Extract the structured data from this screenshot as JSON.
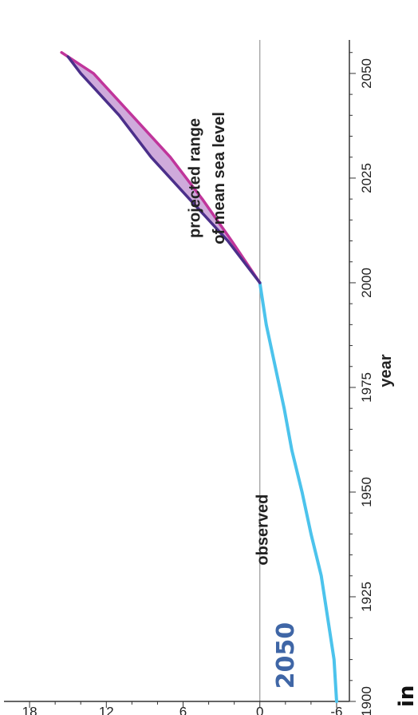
{
  "badge_text": "2050",
  "units_label": "in",
  "chart_data": {
    "type": "area",
    "xlabel": "year",
    "ylabel": "",
    "xlim": [
      1900,
      2058
    ],
    "ylim": [
      -7,
      20
    ],
    "x_ticks": [
      1900,
      1925,
      1950,
      1975,
      2000,
      2025,
      2050
    ],
    "y_ticks": [
      -6,
      0,
      6,
      12,
      18
    ],
    "zero_line": true,
    "annotations": {
      "observed": "observed",
      "projected_line1": "projected range",
      "projected_line2": "of mean sea level"
    },
    "series": [
      {
        "color": "#4cc3ec",
        "x": [
          1900,
          1910,
          1920,
          1930,
          1940,
          1950,
          1960,
          1970,
          1980,
          1990,
          2000
        ],
        "y": [
          -6,
          -5.8,
          -5.3,
          -4.8,
          -4.0,
          -3.3,
          -2.5,
          -1.9,
          -1.2,
          -0.5,
          0
        ]
      },
      {
        "color": "#c0359b",
        "x": [
          2000,
          2010,
          2020,
          2030,
          2040,
          2050,
          2055
        ],
        "y": [
          0,
          2.2,
          4.5,
          7.0,
          10.0,
          13.0,
          15.5
        ]
      },
      {
        "color": "#4b2f8a",
        "x": [
          2000,
          2010,
          2020,
          2030,
          2040,
          2050,
          2054
        ],
        "y": [
          0,
          2.5,
          5.5,
          8.5,
          11.0,
          14.0,
          15.0
        ]
      }
    ],
    "colors": {
      "observed": "#4cc3ec",
      "projected_low": "#c0359b",
      "projected_high": "#4b2f8a",
      "projected_fill": "#c79bd5",
      "zero_line": "#999999",
      "axis": "#333333"
    }
  }
}
